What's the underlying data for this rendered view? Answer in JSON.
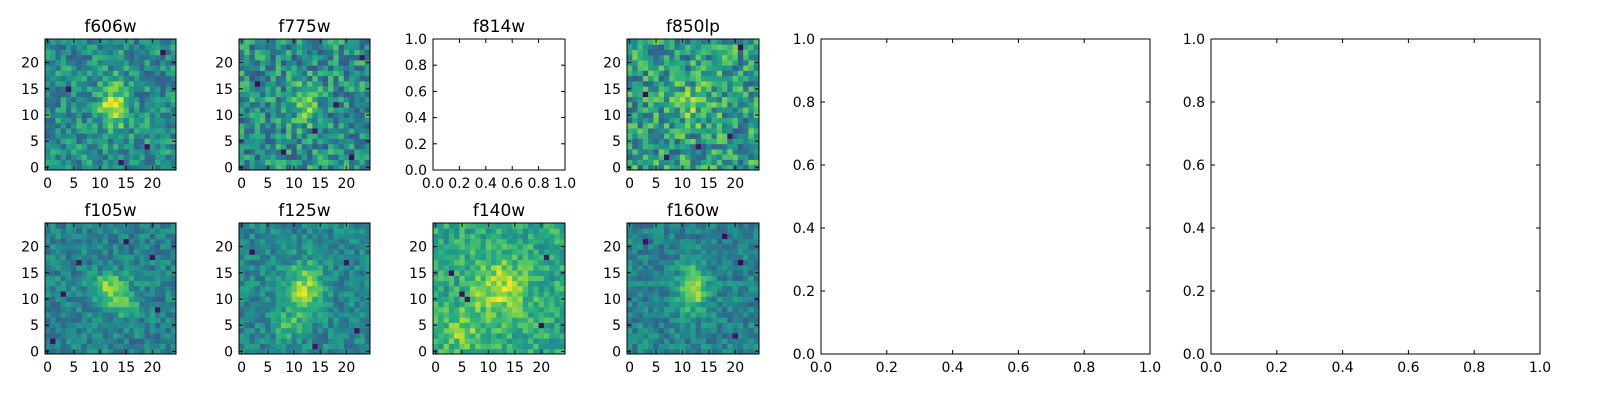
{
  "chart_data": [
    {
      "type": "heatmap",
      "title": "f606w",
      "x_ticks": [
        "0",
        "5",
        "10",
        "15",
        "20"
      ],
      "y_ticks": [
        "0",
        "5",
        "10",
        "15",
        "20"
      ],
      "xlim": [
        -0.5,
        24.5
      ],
      "ylim": [
        -0.5,
        24.5
      ],
      "grid_size": 25,
      "colormap": "viridis",
      "features": [
        {
          "x": 12.5,
          "y": 12,
          "sx": 1.8,
          "sy": 3.2,
          "amp": 0.42
        }
      ],
      "base": 0.5,
      "noise": 0.2,
      "seed": 11,
      "dark_spots": [
        [
          19,
          4
        ],
        [
          4,
          15
        ],
        [
          22,
          22
        ],
        [
          14,
          1
        ]
      ]
    },
    {
      "type": "heatmap",
      "title": "f775w",
      "x_ticks": [
        "0",
        "5",
        "10",
        "15",
        "20"
      ],
      "y_ticks": [
        "0",
        "5",
        "10",
        "15",
        "20"
      ],
      "xlim": [
        -0.5,
        24.5
      ],
      "ylim": [
        -0.5,
        24.5
      ],
      "grid_size": 25,
      "colormap": "viridis",
      "features": [
        {
          "x": 12,
          "y": 12,
          "sx": 1.6,
          "sy": 2.6,
          "amp": 0.32
        }
      ],
      "base": 0.5,
      "noise": 0.24,
      "seed": 23,
      "dark_spots": [
        [
          3,
          16
        ],
        [
          18,
          12
        ],
        [
          21,
          2
        ],
        [
          8,
          3
        ],
        [
          14,
          7
        ],
        [
          23,
          21
        ]
      ]
    },
    {
      "type": "empty",
      "title": "f814w",
      "x_ticks": [
        "0.0",
        "0.2",
        "0.4",
        "0.6",
        "0.8",
        "1.0"
      ],
      "y_ticks": [
        "0.0",
        "0.2",
        "0.4",
        "0.6",
        "0.8",
        "1.0"
      ],
      "xlim": [
        0,
        1
      ],
      "ylim": [
        0,
        1
      ]
    },
    {
      "type": "heatmap",
      "title": "f850lp",
      "x_ticks": [
        "0",
        "5",
        "10",
        "15",
        "20"
      ],
      "y_ticks": [
        "0",
        "5",
        "10",
        "15",
        "20"
      ],
      "xlim": [
        -0.5,
        24.5
      ],
      "ylim": [
        -0.5,
        24.5
      ],
      "grid_size": 25,
      "colormap": "viridis",
      "features": [
        {
          "x": 12,
          "y": 12,
          "sx": 2.5,
          "sy": 2.5,
          "amp": 0.2
        }
      ],
      "base": 0.55,
      "noise": 0.26,
      "seed": 37,
      "dark_spots": [
        [
          3,
          14
        ],
        [
          13,
          4
        ],
        [
          21,
          23
        ],
        [
          19,
          6
        ],
        [
          7,
          2
        ]
      ]
    },
    {
      "type": "empty",
      "title": "",
      "x_ticks": [
        "0.0",
        "0.2",
        "0.4",
        "0.6",
        "0.8",
        "1.0"
      ],
      "y_ticks": [
        "0.0",
        "0.2",
        "0.4",
        "0.6",
        "0.8",
        "1.0"
      ],
      "xlim": [
        0,
        1
      ],
      "ylim": [
        0,
        1
      ]
    },
    {
      "type": "empty",
      "title": "",
      "x_ticks": [
        "0.0",
        "0.2",
        "0.4",
        "0.6",
        "0.8",
        "1.0"
      ],
      "y_ticks": [
        "0.0",
        "0.2",
        "0.4",
        "0.6",
        "0.8",
        "1.0"
      ],
      "xlim": [
        0,
        1
      ],
      "ylim": [
        0,
        1
      ]
    },
    {
      "type": "heatmap",
      "title": "f105w",
      "x_ticks": [
        "0",
        "5",
        "10",
        "15",
        "20"
      ],
      "y_ticks": [
        "0",
        "5",
        "10",
        "15",
        "20"
      ],
      "xlim": [
        -0.5,
        24.5
      ],
      "ylim": [
        -0.5,
        24.5
      ],
      "grid_size": 25,
      "colormap": "viridis",
      "features": [
        {
          "x": 12,
          "y": 12,
          "sx": 2.5,
          "sy": 2.2,
          "amp": 0.38
        },
        {
          "x": 15,
          "y": 9,
          "sx": 2,
          "sy": 1.5,
          "amp": 0.22
        }
      ],
      "base": 0.45,
      "noise": 0.14,
      "seed": 51,
      "dark_spots": [
        [
          3,
          11
        ],
        [
          20,
          18
        ],
        [
          1,
          2
        ],
        [
          21,
          8
        ],
        [
          6,
          17
        ],
        [
          15,
          21
        ]
      ]
    },
    {
      "type": "heatmap",
      "title": "f125w",
      "x_ticks": [
        "0",
        "5",
        "10",
        "15",
        "20"
      ],
      "y_ticks": [
        "0",
        "5",
        "10",
        "15",
        "20"
      ],
      "xlim": [
        -0.5,
        24.5
      ],
      "ylim": [
        -0.5,
        24.5
      ],
      "grid_size": 25,
      "colormap": "viridis",
      "features": [
        {
          "x": 12,
          "y": 12,
          "sx": 2.2,
          "sy": 3.5,
          "amp": 0.4
        },
        {
          "x": 9,
          "y": 5,
          "sx": 2,
          "sy": 1.8,
          "amp": 0.2
        }
      ],
      "base": 0.47,
      "noise": 0.14,
      "seed": 67,
      "dark_spots": [
        [
          20,
          17
        ],
        [
          2,
          19
        ],
        [
          14,
          1
        ],
        [
          22,
          4
        ]
      ]
    },
    {
      "type": "heatmap",
      "title": "f140w",
      "x_ticks": [
        "0",
        "5",
        "10",
        "15",
        "20"
      ],
      "y_ticks": [
        "0",
        "5",
        "10",
        "15",
        "20"
      ],
      "xlim": [
        -0.5,
        24.5
      ],
      "ylim": [
        -0.5,
        24.5
      ],
      "grid_size": 25,
      "colormap": "viridis",
      "features": [
        {
          "x": 12,
          "y": 12,
          "sx": 3.5,
          "sy": 4,
          "amp": 0.3
        },
        {
          "x": 5,
          "y": 4,
          "sx": 3,
          "sy": 3,
          "amp": 0.2
        }
      ],
      "base": 0.6,
      "noise": 0.15,
      "seed": 79,
      "dark_spots": [
        [
          5,
          11
        ],
        [
          6,
          10
        ],
        [
          3,
          15
        ],
        [
          20,
          5
        ],
        [
          21,
          18
        ]
      ]
    },
    {
      "type": "heatmap",
      "title": "f160w",
      "x_ticks": [
        "0",
        "5",
        "10",
        "15",
        "20"
      ],
      "y_ticks": [
        "0",
        "5",
        "10",
        "15",
        "20"
      ],
      "xlim": [
        -0.5,
        24.5
      ],
      "ylim": [
        -0.5,
        24.5
      ],
      "grid_size": 25,
      "colormap": "viridis",
      "features": [
        {
          "x": 12,
          "y": 12,
          "sx": 1.8,
          "sy": 3.2,
          "amp": 0.42
        }
      ],
      "base": 0.45,
      "noise": 0.14,
      "seed": 91,
      "dark_spots": [
        [
          21,
          17
        ],
        [
          20,
          3
        ],
        [
          3,
          21
        ],
        [
          18,
          22
        ]
      ]
    }
  ]
}
